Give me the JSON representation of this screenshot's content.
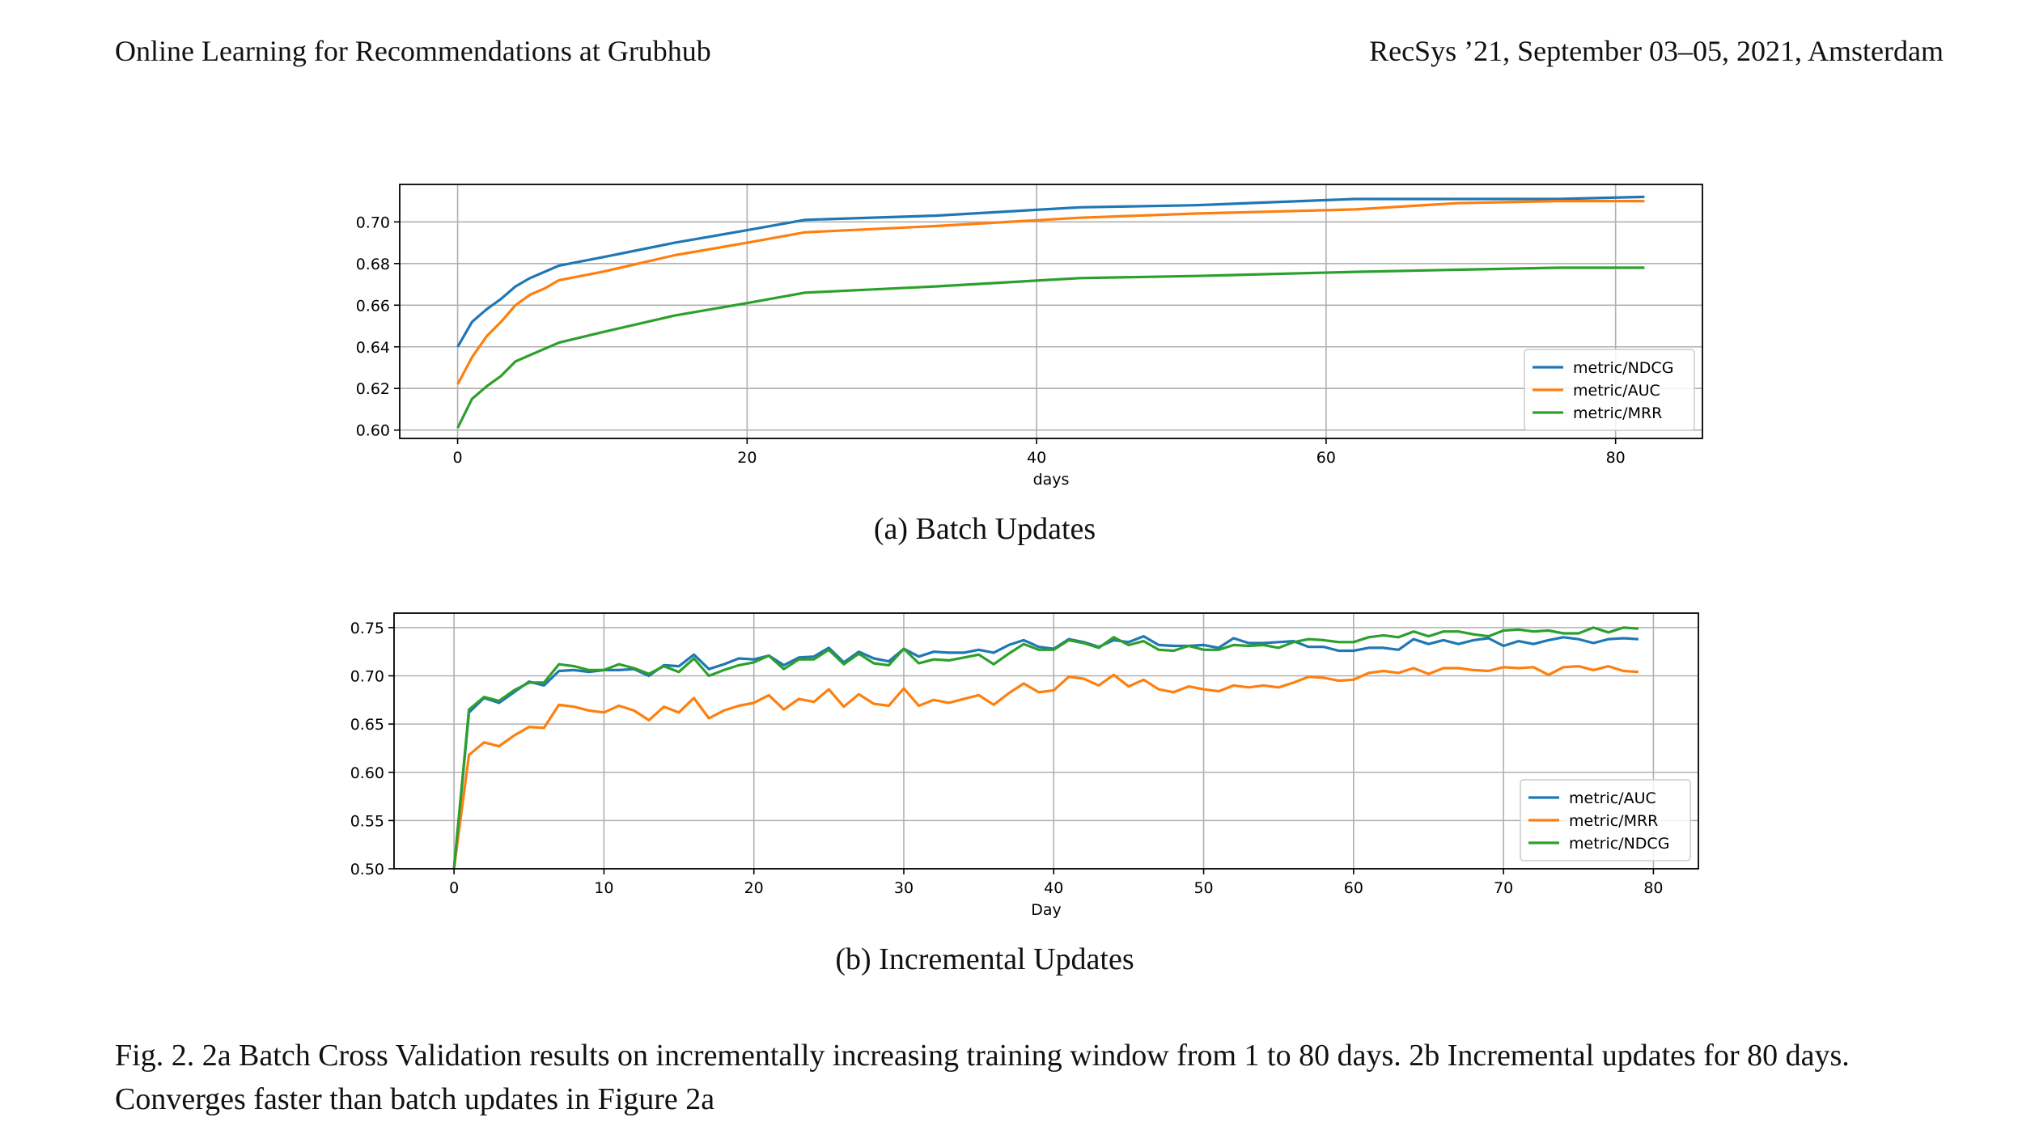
{
  "header": {
    "left": "Online Learning for Recommendations at Grubhub",
    "right": "RecSys ’21, September 03–05, 2021, Amsterdam"
  },
  "figures": {
    "a_label": "(a) Batch Updates",
    "b_label": "(b) Incremental Updates"
  },
  "caption": "Fig. 2.  2a Batch Cross Validation results on incrementally increasing training window from 1 to 80 days. 2b Incremental updates for 80 days. Converges faster than batch updates in Figure 2a",
  "colors": {
    "blue": "#1f77b4",
    "orange": "#ff7f0e",
    "green": "#2ca02c"
  },
  "chart_data": [
    {
      "type": "line",
      "xlabel": "days",
      "ylabel": "",
      "xlim": [
        -4,
        86
      ],
      "ylim": [
        0.596,
        0.718
      ],
      "xticks": [
        0,
        20,
        40,
        60,
        80
      ],
      "yticks": [
        0.6,
        0.62,
        0.64,
        0.66,
        0.68,
        0.7
      ],
      "ytick_labels": [
        "0.60",
        "0.62",
        "0.64",
        "0.66",
        "0.68",
        "0.70"
      ],
      "grid": true,
      "legend_position": "bottom-right",
      "series": [
        {
          "name": "metric/NDCG",
          "color": "#1f77b4",
          "x": [
            0,
            1,
            2,
            3,
            4,
            5,
            6,
            7,
            10,
            15,
            20,
            24,
            33,
            43,
            51,
            62,
            69,
            76,
            82
          ],
          "y": [
            0.64,
            0.652,
            0.658,
            0.663,
            0.669,
            0.673,
            0.676,
            0.679,
            0.683,
            0.69,
            0.696,
            0.701,
            0.703,
            0.707,
            0.708,
            0.711,
            0.711,
            0.711,
            0.712
          ]
        },
        {
          "name": "metric/AUC",
          "color": "#ff7f0e",
          "x": [
            0,
            1,
            2,
            3,
            4,
            5,
            6,
            7,
            10,
            15,
            20,
            24,
            33,
            43,
            51,
            62,
            69,
            76,
            82
          ],
          "y": [
            0.622,
            0.635,
            0.645,
            0.652,
            0.66,
            0.665,
            0.668,
            0.672,
            0.676,
            0.684,
            0.69,
            0.695,
            0.698,
            0.702,
            0.704,
            0.706,
            0.709,
            0.71,
            0.71
          ]
        },
        {
          "name": "metric/MRR",
          "color": "#2ca02c",
          "x": [
            0,
            1,
            2,
            3,
            4,
            5,
            6,
            7,
            10,
            15,
            20,
            24,
            33,
            43,
            51,
            62,
            69,
            76,
            82
          ],
          "y": [
            0.601,
            0.615,
            0.621,
            0.626,
            0.633,
            0.636,
            0.639,
            0.642,
            0.647,
            0.655,
            0.661,
            0.666,
            0.669,
            0.673,
            0.674,
            0.676,
            0.677,
            0.678,
            0.678
          ]
        }
      ]
    },
    {
      "type": "line",
      "xlabel": "Day",
      "ylabel": "",
      "xlim": [
        -4,
        83
      ],
      "ylim": [
        0.5,
        0.765
      ],
      "xticks": [
        0,
        10,
        20,
        30,
        40,
        50,
        60,
        70,
        80
      ],
      "yticks": [
        0.5,
        0.55,
        0.6,
        0.65,
        0.7,
        0.75
      ],
      "ytick_labels": [
        "0.50",
        "0.55",
        "0.60",
        "0.65",
        "0.70",
        "0.75"
      ],
      "grid": true,
      "legend_position": "bottom-right",
      "series": [
        {
          "name": "metric/AUC",
          "color": "#1f77b4",
          "x": [
            0,
            1,
            2,
            3,
            4,
            5,
            6,
            7,
            8,
            9,
            10,
            11,
            12,
            13,
            14,
            15,
            16,
            17,
            18,
            19,
            20,
            21,
            22,
            23,
            24,
            25,
            26,
            27,
            28,
            29,
            30,
            31,
            32,
            33,
            34,
            35,
            36,
            37,
            38,
            39,
            40,
            41,
            42,
            43,
            44,
            45,
            46,
            47,
            48,
            49,
            50,
            51,
            52,
            53,
            54,
            55,
            56,
            57,
            58,
            59,
            60,
            61,
            62,
            63,
            64,
            65,
            66,
            67,
            68,
            69,
            70,
            71,
            72,
            73,
            74,
            75,
            76,
            77,
            78,
            79
          ],
          "y": [
            0.5,
            0.662,
            0.677,
            0.672,
            0.683,
            0.694,
            0.69,
            0.705,
            0.706,
            0.704,
            0.706,
            0.706,
            0.707,
            0.7,
            0.711,
            0.71,
            0.722,
            0.707,
            0.712,
            0.718,
            0.717,
            0.721,
            0.711,
            0.719,
            0.72,
            0.729,
            0.714,
            0.725,
            0.718,
            0.715,
            0.728,
            0.72,
            0.725,
            0.724,
            0.724,
            0.727,
            0.724,
            0.732,
            0.737,
            0.73,
            0.728,
            0.738,
            0.735,
            0.73,
            0.737,
            0.735,
            0.741,
            0.732,
            0.731,
            0.731,
            0.732,
            0.729,
            0.739,
            0.734,
            0.734,
            0.735,
            0.736,
            0.73,
            0.73,
            0.726,
            0.726,
            0.729,
            0.729,
            0.727,
            0.738,
            0.733,
            0.737,
            0.733,
            0.737,
            0.739,
            0.731,
            0.736,
            0.733,
            0.737,
            0.74,
            0.738,
            0.734,
            0.738,
            0.739,
            0.738
          ]
        },
        {
          "name": "metric/MRR",
          "color": "#ff7f0e",
          "x": [
            0,
            1,
            2,
            3,
            4,
            5,
            6,
            7,
            8,
            9,
            10,
            11,
            12,
            13,
            14,
            15,
            16,
            17,
            18,
            19,
            20,
            21,
            22,
            23,
            24,
            25,
            26,
            27,
            28,
            29,
            30,
            31,
            32,
            33,
            34,
            35,
            36,
            37,
            38,
            39,
            40,
            41,
            42,
            43,
            44,
            45,
            46,
            47,
            48,
            49,
            50,
            51,
            52,
            53,
            54,
            55,
            56,
            57,
            58,
            59,
            60,
            61,
            62,
            63,
            64,
            65,
            66,
            67,
            68,
            69,
            70,
            71,
            72,
            73,
            74,
            75,
            76,
            77,
            78,
            79
          ],
          "y": [
            0.5,
            0.618,
            0.631,
            0.627,
            0.638,
            0.647,
            0.646,
            0.67,
            0.668,
            0.664,
            0.662,
            0.669,
            0.664,
            0.654,
            0.668,
            0.662,
            0.677,
            0.656,
            0.664,
            0.669,
            0.672,
            0.68,
            0.665,
            0.676,
            0.673,
            0.686,
            0.668,
            0.681,
            0.671,
            0.669,
            0.687,
            0.669,
            0.675,
            0.672,
            0.676,
            0.68,
            0.67,
            0.682,
            0.692,
            0.683,
            0.685,
            0.699,
            0.697,
            0.69,
            0.701,
            0.689,
            0.696,
            0.686,
            0.683,
            0.689,
            0.686,
            0.684,
            0.69,
            0.688,
            0.69,
            0.688,
            0.693,
            0.699,
            0.698,
            0.695,
            0.696,
            0.703,
            0.705,
            0.703,
            0.708,
            0.702,
            0.708,
            0.708,
            0.706,
            0.705,
            0.709,
            0.708,
            0.709,
            0.701,
            0.709,
            0.71,
            0.706,
            0.71,
            0.705,
            0.704
          ]
        },
        {
          "name": "metric/NDCG",
          "color": "#2ca02c",
          "x": [
            0,
            1,
            2,
            3,
            4,
            5,
            6,
            7,
            8,
            9,
            10,
            11,
            12,
            13,
            14,
            15,
            16,
            17,
            18,
            19,
            20,
            21,
            22,
            23,
            24,
            25,
            26,
            27,
            28,
            29,
            30,
            31,
            32,
            33,
            34,
            35,
            36,
            37,
            38,
            39,
            40,
            41,
            42,
            43,
            44,
            45,
            46,
            47,
            48,
            49,
            50,
            51,
            52,
            53,
            54,
            55,
            56,
            57,
            58,
            59,
            60,
            61,
            62,
            63,
            64,
            65,
            66,
            67,
            68,
            69,
            70,
            71,
            72,
            73,
            74,
            75,
            76,
            77,
            78,
            79
          ],
          "y": [
            0.5,
            0.665,
            0.678,
            0.674,
            0.685,
            0.693,
            0.693,
            0.712,
            0.71,
            0.706,
            0.706,
            0.712,
            0.708,
            0.702,
            0.71,
            0.704,
            0.718,
            0.7,
            0.706,
            0.711,
            0.714,
            0.721,
            0.707,
            0.717,
            0.717,
            0.727,
            0.712,
            0.723,
            0.713,
            0.711,
            0.728,
            0.713,
            0.717,
            0.716,
            0.719,
            0.722,
            0.712,
            0.723,
            0.733,
            0.727,
            0.727,
            0.737,
            0.734,
            0.729,
            0.74,
            0.732,
            0.736,
            0.727,
            0.726,
            0.731,
            0.727,
            0.727,
            0.732,
            0.731,
            0.732,
            0.729,
            0.735,
            0.738,
            0.737,
            0.735,
            0.735,
            0.74,
            0.742,
            0.74,
            0.746,
            0.741,
            0.746,
            0.746,
            0.743,
            0.741,
            0.747,
            0.748,
            0.746,
            0.747,
            0.744,
            0.744,
            0.75,
            0.745,
            0.75,
            0.749
          ]
        }
      ]
    }
  ]
}
